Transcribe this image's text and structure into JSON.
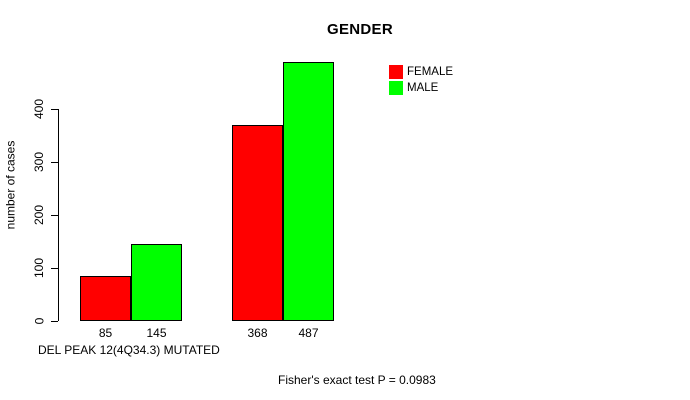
{
  "chart_data": {
    "type": "bar",
    "title": "GENDER",
    "ylabel": "number of cases",
    "xlabel": "DEL PEAK 12(4Q34.3) MUTATED",
    "footnote": "Fisher's exact test P = 0.0983",
    "series": [
      {
        "name": "FEMALE",
        "color": "#ff0000",
        "values": [
          85,
          368
        ]
      },
      {
        "name": "MALE",
        "color": "#00ff00",
        "values": [
          145,
          487
        ]
      }
    ],
    "yticks": [
      0,
      100,
      200,
      300,
      400
    ],
    "ylim": [
      0,
      400
    ],
    "bar_value_labels": [
      [
        85,
        145
      ],
      [
        368,
        487
      ]
    ],
    "legend_position": "top-right",
    "grid": false,
    "background": "#ffffff",
    "axis_color": "#000000"
  }
}
